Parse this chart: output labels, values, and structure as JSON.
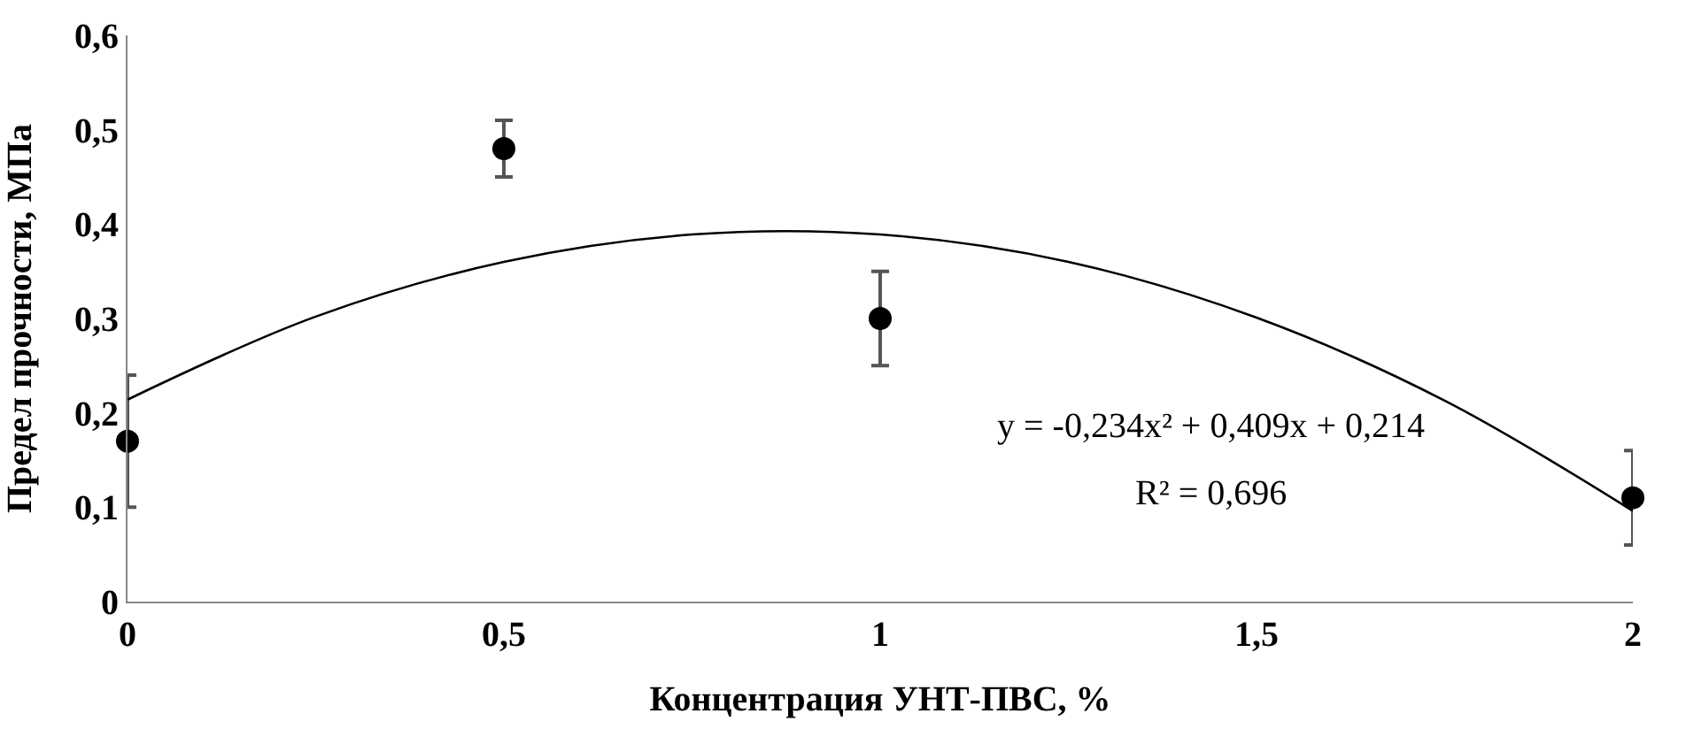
{
  "chart_data": {
    "type": "scatter",
    "xlabel": "Концентрация УНТ-ПВС, %",
    "ylabel": "Предел прочности, МПа",
    "xlim": [
      0,
      2
    ],
    "xticks": [
      0,
      {
        "value": 0.5,
        "label": "0,5"
      },
      1,
      {
        "value": 1.5,
        "label": "1,5"
      },
      2
    ],
    "ylim": [
      0,
      0.6
    ],
    "yticks": [
      0,
      {
        "value": 0.1,
        "label": "0,1"
      },
      {
        "value": 0.2,
        "label": "0,2"
      },
      {
        "value": 0.3,
        "label": "0,3"
      },
      {
        "value": 0.4,
        "label": "0,4"
      },
      {
        "value": 0.5,
        "label": "0,5"
      },
      {
        "value": 0.6,
        "label": "0,6"
      }
    ],
    "grid": false,
    "legend": false,
    "series": [
      {
        "marker": "circle",
        "color": "#000000",
        "x": [
          0,
          0.5,
          1,
          2
        ],
        "values": [
          0.17,
          0.48,
          0.3,
          0.11
        ],
        "errors": [
          [
            0.1,
            0.24
          ],
          [
            0.45,
            0.51
          ],
          [
            0.25,
            0.35
          ],
          [
            0.06,
            0.16
          ]
        ]
      },
      {
        "type": "line",
        "color": "#000000",
        "line_style": "solid",
        "x": [
          0,
          0.25,
          0.5,
          0.75,
          1,
          1.25,
          1.5,
          1.75,
          2
        ],
        "values": [
          0.214,
          0.302,
          0.36,
          0.389,
          0.389,
          0.36,
          0.301,
          0.213,
          0.096
        ]
      }
    ],
    "annotations": [
      "y = -0,234x² + 0,409x + 0,214",
      "R² = 0,696"
    ]
  }
}
